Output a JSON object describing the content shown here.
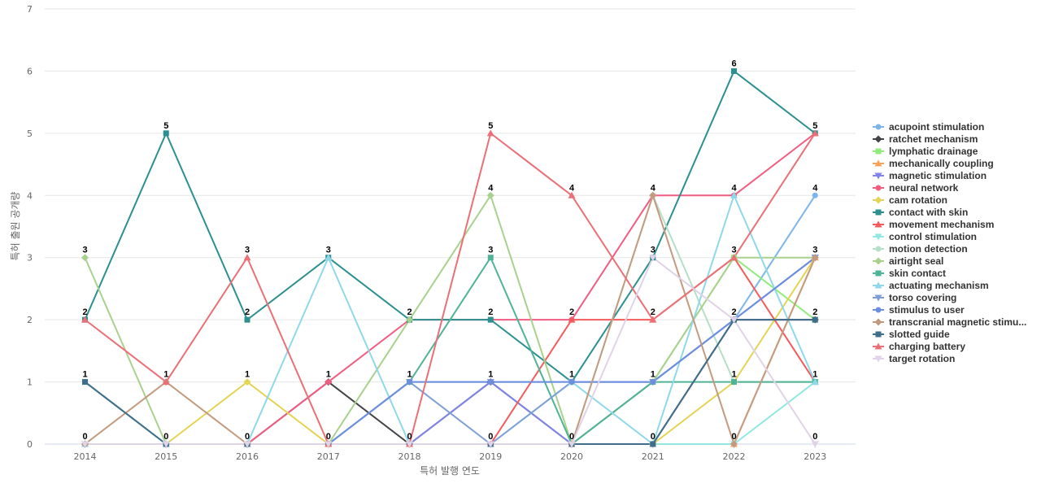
{
  "chart_data": {
    "type": "line",
    "title": "",
    "xlabel": "특허 발행 연도",
    "ylabel": "특허 출원 공개량",
    "ylim": [
      0,
      7
    ],
    "yticks": [
      0,
      1,
      2,
      3,
      4,
      5,
      6,
      7
    ],
    "x": [
      "2014",
      "2015",
      "2016",
      "2017",
      "2018",
      "2019",
      "2020",
      "2021",
      "2022",
      "2023"
    ],
    "grid": true,
    "legend_position": "right",
    "series": [
      {
        "name": "acupoint stimulation",
        "color": "#7cb5ec",
        "marker": "circle",
        "values": [
          0,
          0,
          0,
          0,
          1,
          1,
          1,
          1,
          2,
          4
        ]
      },
      {
        "name": "ratchet mechanism",
        "color": "#434348",
        "marker": "diamond",
        "values": [
          0,
          0,
          0,
          1,
          0,
          1,
          0,
          0,
          2,
          2
        ]
      },
      {
        "name": "lymphatic drainage",
        "color": "#90ed7d",
        "marker": "square",
        "values": [
          0,
          0,
          0,
          0,
          0,
          0,
          0,
          1,
          3,
          2
        ]
      },
      {
        "name": "mechanically coupling",
        "color": "#f7a35c",
        "marker": "triangle",
        "values": [
          0,
          0,
          0,
          0,
          0,
          0,
          0,
          0,
          0,
          3
        ]
      },
      {
        "name": "magnetic stimulation",
        "color": "#8085e9",
        "marker": "triangle-down",
        "values": [
          0,
          0,
          0,
          0,
          0,
          1,
          0,
          1,
          2,
          3
        ]
      },
      {
        "name": "neural network",
        "color": "#f15c80",
        "marker": "circle",
        "values": [
          0,
          0,
          0,
          1,
          2,
          2,
          2,
          4,
          4,
          5
        ]
      },
      {
        "name": "cam rotation",
        "color": "#e4d354",
        "marker": "diamond",
        "values": [
          0,
          0,
          1,
          0,
          0,
          0,
          0,
          0,
          1,
          3
        ]
      },
      {
        "name": "contact with skin",
        "color": "#2b908f",
        "marker": "square",
        "values": [
          2,
          5,
          2,
          3,
          2,
          2,
          1,
          3,
          6,
          5
        ]
      },
      {
        "name": "movement mechanism",
        "color": "#f45b5b",
        "marker": "triangle",
        "values": [
          0,
          0,
          0,
          0,
          0,
          0,
          2,
          2,
          3,
          1
        ]
      },
      {
        "name": "control stimulation",
        "color": "#91e8e1",
        "marker": "triangle-down",
        "values": [
          0,
          0,
          0,
          0,
          0,
          0,
          0,
          0,
          0,
          1
        ]
      },
      {
        "name": "motion detection",
        "color": "#b5dfc8",
        "marker": "circle",
        "values": [
          0,
          0,
          0,
          0,
          0,
          0,
          0,
          4,
          1,
          1
        ]
      },
      {
        "name": "airtight seal",
        "color": "#a9d18e",
        "marker": "diamond",
        "values": [
          3,
          0,
          0,
          0,
          2,
          4,
          0,
          1,
          3,
          3
        ]
      },
      {
        "name": "skin contact",
        "color": "#4fb396",
        "marker": "square",
        "values": [
          1,
          0,
          0,
          0,
          1,
          3,
          0,
          1,
          1,
          1
        ]
      },
      {
        "name": "actuating mechanism",
        "color": "#8fd8ea",
        "marker": "triangle",
        "values": [
          0,
          0,
          0,
          3,
          0,
          0,
          1,
          0,
          4,
          1
        ]
      },
      {
        "name": "torso covering",
        "color": "#7e9fd6",
        "marker": "triangle-down",
        "values": [
          0,
          0,
          0,
          0,
          1,
          0,
          1,
          1,
          2,
          3
        ]
      },
      {
        "name": "stimulus to user",
        "color": "#6d8ee0",
        "marker": "circle",
        "values": [
          0,
          0,
          0,
          0,
          1,
          1,
          1,
          1,
          2,
          3
        ]
      },
      {
        "name": "transcranial magnetic stimu...",
        "color": "#c49a7e",
        "marker": "diamond",
        "values": [
          0,
          1,
          0,
          0,
          0,
          0,
          0,
          4,
          0,
          3
        ]
      },
      {
        "name": "slotted guide",
        "color": "#3f6e8c",
        "marker": "square",
        "values": [
          1,
          0,
          0,
          0,
          0,
          0,
          0,
          0,
          2,
          2
        ]
      },
      {
        "name": "charging battery",
        "color": "#ea6f76",
        "marker": "triangle",
        "values": [
          2,
          1,
          3,
          0,
          0,
          5,
          4,
          2,
          3,
          5
        ]
      },
      {
        "name": "target rotation",
        "color": "#e0d3e8",
        "marker": "triangle-down",
        "values": [
          0,
          0,
          0,
          0,
          0,
          0,
          0,
          3,
          2,
          0
        ]
      }
    ],
    "data_labels": [
      {
        "x": "2014",
        "text": "3",
        "value": 3
      },
      {
        "x": "2014",
        "text": "2",
        "value": 2
      },
      {
        "x": "2014",
        "text": "1",
        "value": 1
      },
      {
        "x": "2014",
        "text": "0",
        "value": 0
      },
      {
        "x": "2015",
        "text": "5",
        "value": 5
      },
      {
        "x": "2015",
        "text": "1",
        "value": 1
      },
      {
        "x": "2015",
        "text": "0",
        "value": 0
      },
      {
        "x": "2016",
        "text": "3",
        "value": 3
      },
      {
        "x": "2016",
        "text": "2",
        "value": 2
      },
      {
        "x": "2016",
        "text": "1",
        "value": 1
      },
      {
        "x": "2016",
        "text": "0",
        "value": 0
      },
      {
        "x": "2017",
        "text": "3",
        "value": 3
      },
      {
        "x": "2017",
        "text": "1",
        "value": 1
      },
      {
        "x": "2017",
        "text": "0",
        "value": 0
      },
      {
        "x": "2018",
        "text": "2",
        "value": 2
      },
      {
        "x": "2018",
        "text": "1",
        "value": 1
      },
      {
        "x": "2018",
        "text": "0",
        "value": 0
      },
      {
        "x": "2019",
        "text": "5",
        "value": 5
      },
      {
        "x": "2019",
        "text": "4",
        "value": 4
      },
      {
        "x": "2019",
        "text": "3",
        "value": 3
      },
      {
        "x": "2019",
        "text": "2",
        "value": 2
      },
      {
        "x": "2019",
        "text": "1",
        "value": 1
      },
      {
        "x": "2019",
        "text": "0",
        "value": 0
      },
      {
        "x": "2020",
        "text": "4",
        "value": 4
      },
      {
        "x": "2020",
        "text": "2",
        "value": 2
      },
      {
        "x": "2020",
        "text": "1",
        "value": 1
      },
      {
        "x": "2020",
        "text": "0",
        "value": 0
      },
      {
        "x": "2021",
        "text": "4",
        "value": 4
      },
      {
        "x": "2021",
        "text": "3",
        "value": 3
      },
      {
        "x": "2021",
        "text": "2",
        "value": 2
      },
      {
        "x": "2021",
        "text": "1",
        "value": 1
      },
      {
        "x": "2021",
        "text": "0",
        "value": 0
      },
      {
        "x": "2022",
        "text": "6",
        "value": 6
      },
      {
        "x": "2022",
        "text": "4",
        "value": 4
      },
      {
        "x": "2022",
        "text": "3",
        "value": 3
      },
      {
        "x": "2022",
        "text": "2",
        "value": 2
      },
      {
        "x": "2022",
        "text": "1",
        "value": 1
      },
      {
        "x": "2022",
        "text": "0",
        "value": 0
      },
      {
        "x": "2023",
        "text": "5",
        "value": 5
      },
      {
        "x": "2023",
        "text": "4",
        "value": 4
      },
      {
        "x": "2023",
        "text": "3",
        "value": 3
      },
      {
        "x": "2023",
        "text": "2",
        "value": 2
      },
      {
        "x": "2023",
        "text": "1",
        "value": 1
      },
      {
        "x": "2023",
        "text": "0",
        "value": 0
      }
    ]
  }
}
